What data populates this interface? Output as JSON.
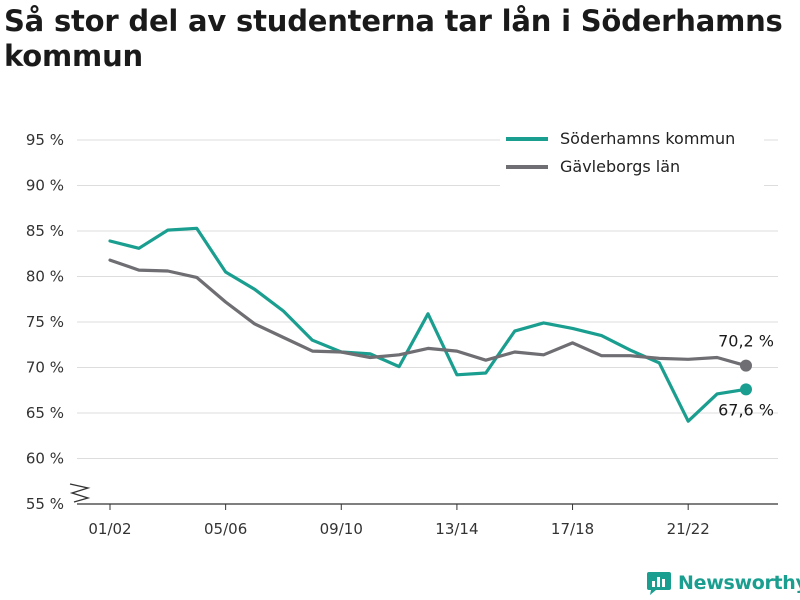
{
  "title": "Så stor del av studenterna tar lån i Söderhamns kommun",
  "brand": {
    "name": "Newsworthy",
    "icon": "newsworthy-logo-icon"
  },
  "colors": {
    "soderhamn": "#1a9e8f",
    "gavleborg": "#6e6e73",
    "grid": "#dddddd",
    "axis": "#333333"
  },
  "chart_data": {
    "type": "line",
    "title": "Så stor del av studenterna tar lån i Söderhamns kommun",
    "xlabel": "",
    "ylabel": "",
    "x": [
      "01/02",
      "02/03",
      "03/04",
      "04/05",
      "05/06",
      "06/07",
      "07/08",
      "08/09",
      "09/10",
      "10/11",
      "11/12",
      "12/13",
      "13/14",
      "14/15",
      "15/16",
      "16/17",
      "17/18",
      "18/19",
      "19/20",
      "20/21",
      "21/22",
      "22/23",
      "23/24"
    ],
    "x_tick_labels": [
      "01/02",
      "05/06",
      "09/10",
      "13/14",
      "17/18",
      "21/22"
    ],
    "ylim": [
      55,
      95
    ],
    "y_ticks": [
      55,
      60,
      65,
      70,
      75,
      80,
      85,
      90,
      95
    ],
    "y_tick_labels": [
      "55 %",
      "60 %",
      "65 %",
      "70 %",
      "75 %",
      "80 %",
      "85 %",
      "90 %",
      "95 %"
    ],
    "y_axis_break": true,
    "grid": true,
    "legend_position": "top-right",
    "series": [
      {
        "name": "Söderhamns kommun",
        "color": "#1a9e8f",
        "values": [
          83.9,
          83.1,
          85.1,
          85.3,
          80.5,
          78.6,
          76.2,
          73.0,
          71.7,
          71.5,
          70.1,
          75.9,
          69.2,
          69.4,
          74.0,
          74.9,
          74.3,
          73.5,
          71.9,
          70.5,
          64.1,
          67.1,
          67.6
        ],
        "end_label": "67,6 %"
      },
      {
        "name": "Gävleborgs län",
        "color": "#6e6e73",
        "values": [
          81.8,
          80.7,
          80.6,
          79.9,
          77.2,
          74.8,
          73.3,
          71.8,
          71.7,
          71.1,
          71.4,
          72.1,
          71.8,
          70.8,
          71.7,
          71.4,
          72.7,
          71.3,
          71.3,
          71.0,
          70.9,
          71.1,
          70.2
        ],
        "end_label": "70,2 %"
      }
    ]
  }
}
